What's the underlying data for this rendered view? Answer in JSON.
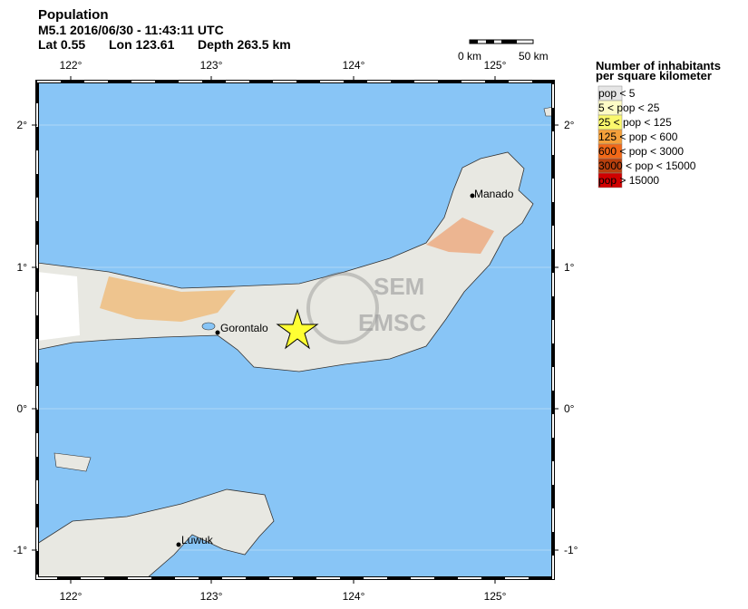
{
  "header": {
    "title": "Population",
    "event": "M5.1  2016/06/30 - 11:43:11 UTC",
    "lat": "Lat  0.55",
    "lon": "Lon 123.61",
    "depth": "Depth 263.5 km"
  },
  "scale_bar": {
    "start": "0 km",
    "end": "50 km"
  },
  "map": {
    "lon_ticks": [
      "122°",
      "123°",
      "124°",
      "125°"
    ],
    "lat_ticks": [
      "2°",
      "1°",
      "0°",
      "-1°"
    ],
    "cities": [
      "Gorontalo",
      "Manado",
      "Luwuk"
    ],
    "watermark": [
      "SEM",
      "EMSC"
    ]
  },
  "legend": {
    "title": [
      "Number of inhabitants",
      "per square kilometer"
    ],
    "items": [
      {
        "label": "pop < 5",
        "color": "#e6e6e6"
      },
      {
        "label": "5 < pop < 25",
        "color": "#fdfbc6"
      },
      {
        "label": "25 < pop < 125",
        "color": "#faf86c"
      },
      {
        "label": "125 < pop < 600",
        "color": "#f4a03a"
      },
      {
        "label": "600 < pop < 3000",
        "color": "#f26818"
      },
      {
        "label": "3000 < pop < 15000",
        "color": "#b8400e"
      },
      {
        "label": "pop > 15000",
        "color": "#d00000"
      }
    ]
  }
}
